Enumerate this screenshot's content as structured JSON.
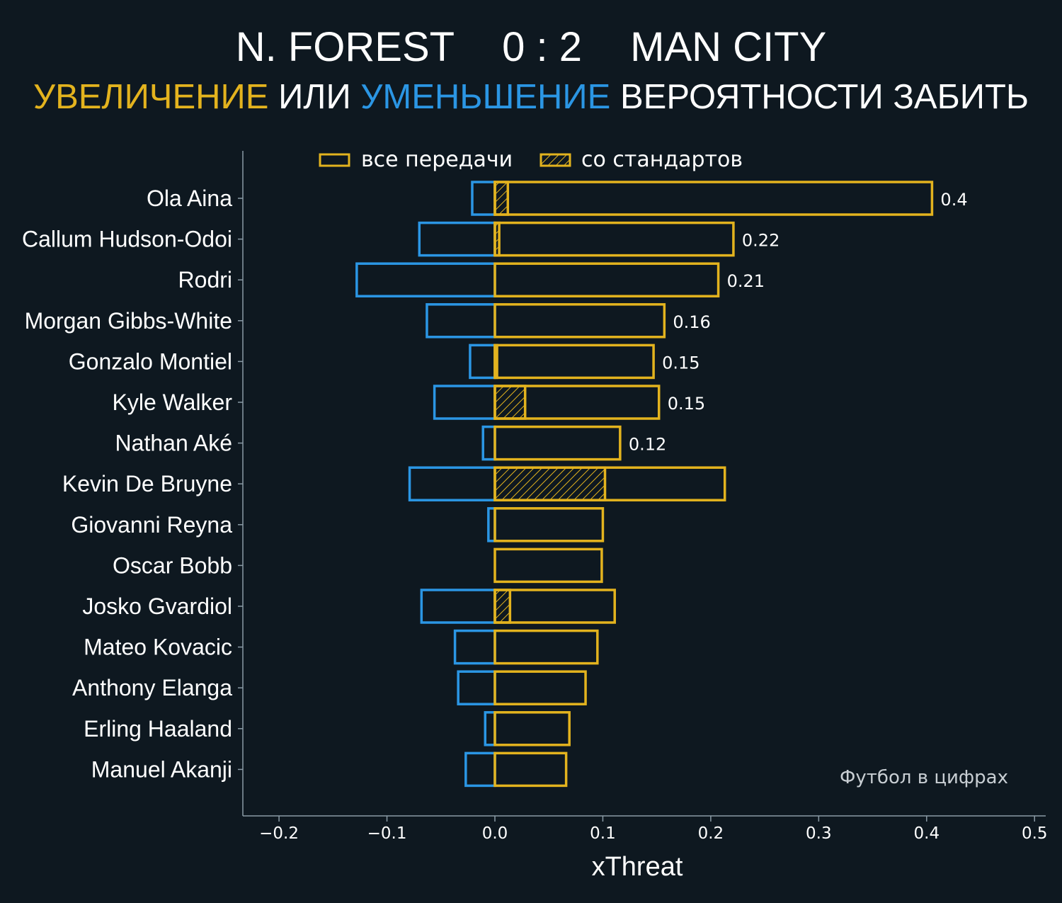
{
  "header": {
    "home_team": "N. FOREST",
    "score": "0 : 2",
    "away_team": "MAN CITY",
    "subtitle_increase": "УВЕЛИЧЕНИЕ",
    "subtitle_or": "ИЛИ",
    "subtitle_decrease": "УМЕНЬШЕНИЕ",
    "subtitle_rest": "ВЕРОЯТНОСТИ ЗАБИТЬ"
  },
  "watermark": "Футбол в цифрах",
  "colors": {
    "background": "#0e1820",
    "positive": "#e3b31e",
    "negative": "#2b96e4",
    "axis": "#8a9aa5",
    "text": "#ffffff"
  },
  "chart_data": {
    "type": "bar",
    "orientation": "horizontal",
    "xlabel": "xThreat",
    "xlim": [
      -0.24,
      0.51
    ],
    "xticks": [
      -0.2,
      -0.1,
      0.0,
      0.1,
      0.2,
      0.3,
      0.4,
      0.5
    ],
    "xtick_labels": [
      "−0.2",
      "−0.1",
      "0.0",
      "0.1",
      "0.2",
      "0.3",
      "0.4",
      "0.5"
    ],
    "legend_position": "top",
    "legend": [
      {
        "label": "все передачи",
        "style": "outline"
      },
      {
        "label": "со стандартов",
        "style": "hatched"
      }
    ],
    "categories": [
      "Ola Aina",
      "Callum Hudson-Odoi",
      "Rodri",
      "Morgan Gibbs-White",
      "Gonzalo Montiel",
      "Kyle Walker",
      "Nathan Aké",
      "Kevin De Bruyne",
      "Giovanni Reyna",
      "Oscar Bobb",
      "Josko Gvardiol",
      "Mateo Kovacic",
      "Anthony Elanga",
      "Erling Haaland",
      "Manuel Akanji"
    ],
    "series": [
      {
        "key": "positive",
        "values": [
          0.405,
          0.221,
          0.207,
          0.157,
          0.147,
          0.152,
          0.116,
          0.213,
          0.1,
          0.099,
          0.111,
          0.095,
          0.084,
          0.069,
          0.066
        ]
      },
      {
        "key": "negative",
        "values": [
          -0.021,
          -0.07,
          -0.128,
          -0.063,
          -0.023,
          -0.056,
          -0.011,
          -0.079,
          -0.006,
          0.0,
          -0.068,
          -0.037,
          -0.034,
          -0.009,
          -0.027
        ]
      },
      {
        "key": "set_pieces",
        "values": [
          0.012,
          0.004,
          0.0,
          0.0,
          0.002,
          0.028,
          0.0,
          0.102,
          0.0,
          0.0,
          0.014,
          0.0,
          0.0,
          0.0,
          0.0
        ]
      }
    ],
    "net_labels": [
      "0.4",
      "0.22",
      "0.21",
      "0.16",
      "0.15",
      "0.15",
      "0.12",
      "",
      "",
      "",
      "",
      "",
      "",
      "",
      ""
    ]
  }
}
